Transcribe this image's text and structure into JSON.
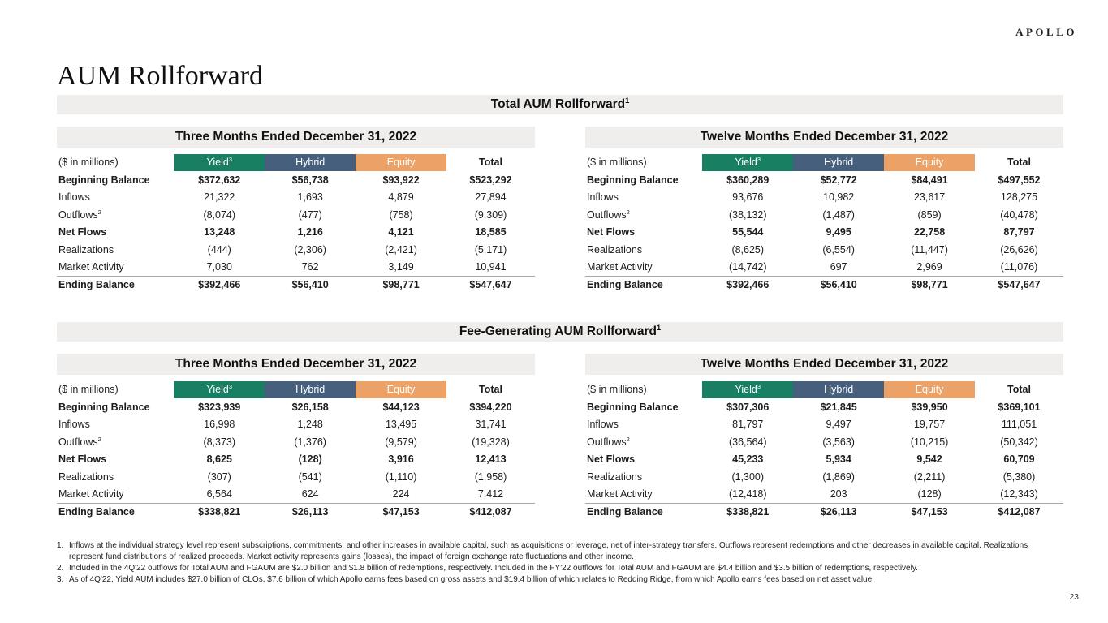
{
  "brand": "APOLLO",
  "page_title": "AUM Rollforward",
  "page_number": "23",
  "colors": {
    "yield": "#187f62",
    "hybrid": "#455f7c",
    "equity": "#eca266",
    "section_bar_bg": "#efeeec"
  },
  "column_headers": {
    "label": "($ in millions)",
    "yield": "Yield",
    "yield_sup": "3",
    "hybrid": "Hybrid",
    "equity": "Equity",
    "total": "Total"
  },
  "sections": [
    {
      "title": "Total AUM Rollforward",
      "title_sup": "1",
      "tables": [
        {
          "period": "Three Months Ended December 31, 2022",
          "rows": [
            {
              "label": "Beginning Balance",
              "bold": true,
              "values": [
                "$372,632",
                "$56,738",
                "$93,922",
                "$523,292"
              ]
            },
            {
              "label": "Inflows",
              "values": [
                "21,322",
                "1,693",
                "4,879",
                "27,894"
              ]
            },
            {
              "label": "Outflows",
              "sup": "2",
              "values": [
                "(8,074)",
                "(477)",
                "(758)",
                "(9,309)"
              ]
            },
            {
              "label": "Net Flows",
              "bold": true,
              "values": [
                "13,248",
                "1,216",
                "4,121",
                "18,585"
              ]
            },
            {
              "label": "Realizations",
              "values": [
                "(444)",
                "(2,306)",
                "(2,421)",
                "(5,171)"
              ]
            },
            {
              "label": "Market Activity",
              "values": [
                "7,030",
                "762",
                "3,149",
                "10,941"
              ]
            },
            {
              "label": "Ending Balance",
              "bold": true,
              "topline": true,
              "values": [
                "$392,466",
                "$56,410",
                "$98,771",
                "$547,647"
              ]
            }
          ]
        },
        {
          "period": "Twelve Months Ended December 31, 2022",
          "rows": [
            {
              "label": "Beginning Balance",
              "bold": true,
              "values": [
                "$360,289",
                "$52,772",
                "$84,491",
                "$497,552"
              ]
            },
            {
              "label": "Inflows",
              "values": [
                "93,676",
                "10,982",
                "23,617",
                "128,275"
              ]
            },
            {
              "label": "Outflows",
              "sup": "2",
              "values": [
                "(38,132)",
                "(1,487)",
                "(859)",
                "(40,478)"
              ]
            },
            {
              "label": "Net Flows",
              "bold": true,
              "values": [
                "55,544",
                "9,495",
                "22,758",
                "87,797"
              ]
            },
            {
              "label": "Realizations",
              "values": [
                "(8,625)",
                "(6,554)",
                "(11,447)",
                "(26,626)"
              ]
            },
            {
              "label": "Market Activity",
              "values": [
                "(14,742)",
                "697",
                "2,969",
                "(11,076)"
              ]
            },
            {
              "label": "Ending Balance",
              "bold": true,
              "topline": true,
              "values": [
                "$392,466",
                "$56,410",
                "$98,771",
                "$547,647"
              ]
            }
          ]
        }
      ]
    },
    {
      "title": "Fee-Generating AUM Rollforward",
      "title_sup": "1",
      "tables": [
        {
          "period": "Three Months Ended December 31, 2022",
          "rows": [
            {
              "label": "Beginning Balance",
              "bold": true,
              "values": [
                "$323,939",
                "$26,158",
                "$44,123",
                "$394,220"
              ]
            },
            {
              "label": "Inflows",
              "values": [
                "16,998",
                "1,248",
                "13,495",
                "31,741"
              ]
            },
            {
              "label": "Outflows",
              "sup": "2",
              "values": [
                "(8,373)",
                "(1,376)",
                "(9,579)",
                "(19,328)"
              ]
            },
            {
              "label": "Net Flows",
              "bold": true,
              "values": [
                "8,625",
                "(128)",
                "3,916",
                "12,413"
              ]
            },
            {
              "label": "Realizations",
              "values": [
                "(307)",
                "(541)",
                "(1,110)",
                "(1,958)"
              ]
            },
            {
              "label": "Market Activity",
              "values": [
                "6,564",
                "624",
                "224",
                "7,412"
              ]
            },
            {
              "label": "Ending Balance",
              "bold": true,
              "topline": true,
              "values": [
                "$338,821",
                "$26,113",
                "$47,153",
                "$412,087"
              ]
            }
          ]
        },
        {
          "period": "Twelve Months Ended December 31, 2022",
          "rows": [
            {
              "label": "Beginning Balance",
              "bold": true,
              "values": [
                "$307,306",
                "$21,845",
                "$39,950",
                "$369,101"
              ]
            },
            {
              "label": "Inflows",
              "values": [
                "81,797",
                "9,497",
                "19,757",
                "111,051"
              ]
            },
            {
              "label": "Outflows",
              "sup": "2",
              "values": [
                "(36,564)",
                "(3,563)",
                "(10,215)",
                "(50,342)"
              ]
            },
            {
              "label": "Net Flows",
              "bold": true,
              "values": [
                "45,233",
                "5,934",
                "9,542",
                "60,709"
              ]
            },
            {
              "label": "Realizations",
              "values": [
                "(1,300)",
                "(1,869)",
                "(2,211)",
                "(5,380)"
              ]
            },
            {
              "label": "Market Activity",
              "values": [
                "(12,418)",
                "203",
                "(128)",
                "(12,343)"
              ]
            },
            {
              "label": "Ending Balance",
              "bold": true,
              "topline": true,
              "values": [
                "$338,821",
                "$26,113",
                "$47,153",
                "$412,087"
              ]
            }
          ]
        }
      ]
    }
  ],
  "footnote_numbers": [
    "1.",
    "2.",
    "3."
  ],
  "footnotes": [
    "Inflows at the individual strategy level represent subscriptions, commitments, and other increases in available capital, such as acquisitions or leverage, net of inter-strategy transfers. Outflows represent redemptions and other decreases in available capital. Realizations represent fund distributions of realized proceeds. Market activity represents gains (losses), the impact of foreign exchange rate fluctuations and other income.",
    "Included in the 4Q'22 outflows for Total AUM and FGAUM are $2.0 billion and $1.8 billion of redemptions, respectively. Included in the FY'22 outflows for Total AUM and FGAUM are $4.4 billion and $3.5 billion of redemptions, respectively.",
    "As of 4Q'22, Yield AUM includes $27.0 billion of CLOs, $7.6 billion of which Apollo earns fees based on gross assets and $19.4 billion of which relates to Redding Ridge, from which Apollo earns fees based on net asset value."
  ]
}
